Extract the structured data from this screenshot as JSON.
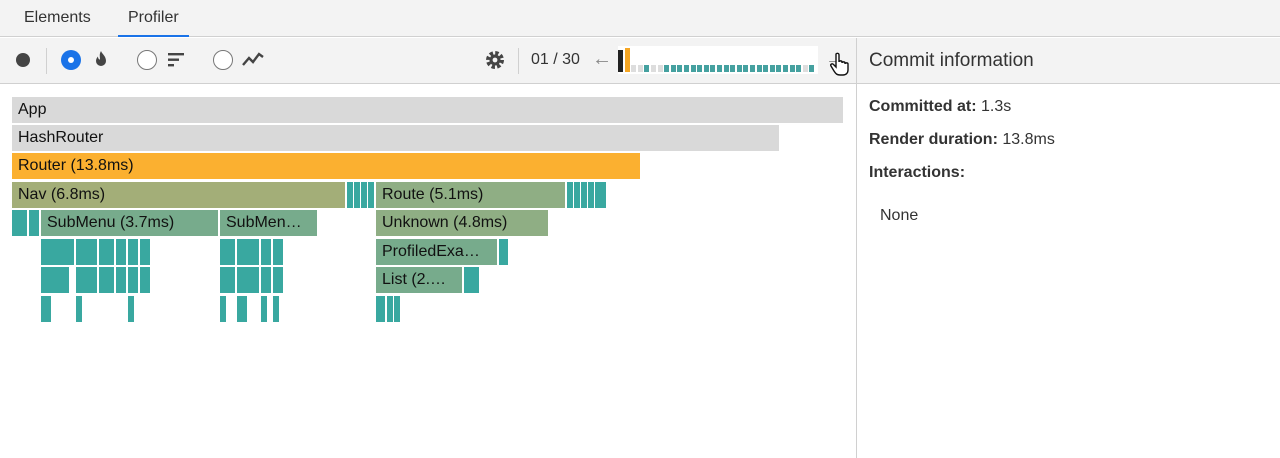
{
  "tabs": [
    {
      "label": "Elements"
    },
    {
      "label": "Profiler"
    }
  ],
  "toolbar": {
    "counter": "01 / 30",
    "prev_icon": "←",
    "next_icon": "→"
  },
  "commits": {
    "colors": [
      "#222222",
      "#f6a623",
      "#dddddd",
      "#dddddd",
      "#45a1a0",
      "#dddddd",
      "#dddddd",
      "#45a1a0",
      "#45a1a0",
      "#45a1a0",
      "#45a1a0",
      "#45a1a0",
      "#45a1a0",
      "#45a1a0",
      "#45a1a0",
      "#45a1a0",
      "#45a1a0",
      "#45a1a0",
      "#45a1a0",
      "#45a1a0",
      "#45a1a0",
      "#45a1a0",
      "#45a1a0",
      "#45a1a0",
      "#45a1a0",
      "#45a1a0",
      "#45a1a0",
      "#45a1a0",
      "#dddddd",
      "#45a1a0"
    ],
    "heights": [
      0.9,
      1.0,
      0.3,
      0.3,
      0.3,
      0.3,
      0.3,
      0.3,
      0.3,
      0.3,
      0.3,
      0.3,
      0.3,
      0.3,
      0.3,
      0.3,
      0.3,
      0.3,
      0.3,
      0.3,
      0.3,
      0.3,
      0.3,
      0.3,
      0.3,
      0.3,
      0.3,
      0.3,
      0.3,
      0.3
    ]
  },
  "flamegraph": {
    "app": "App",
    "hashrouter": "HashRouter",
    "router": "Router (13.8ms)",
    "nav": "Nav (6.8ms)",
    "route": "Route (5.1ms)",
    "submenu1": "SubMenu (3.7ms)",
    "submenu2": "SubMen…",
    "unknown": "Unknown (4.8ms)",
    "profiled": "ProfiledExa…",
    "list": "List (2.…",
    "colors": {
      "gray": "#d9d9d9",
      "orange": "#fbb030",
      "olive": "#a3ae78",
      "green": "#8fae84",
      "teal": "#39a8a0",
      "tealgreen": "#77ab8c"
    }
  },
  "right_panel": {
    "title": "Commit information",
    "committed_label": "Committed at:",
    "committed_value": "1.3s",
    "render_label": "Render duration:",
    "render_value": "13.8ms",
    "interactions_label": "Interactions:",
    "interactions_value": "None"
  }
}
